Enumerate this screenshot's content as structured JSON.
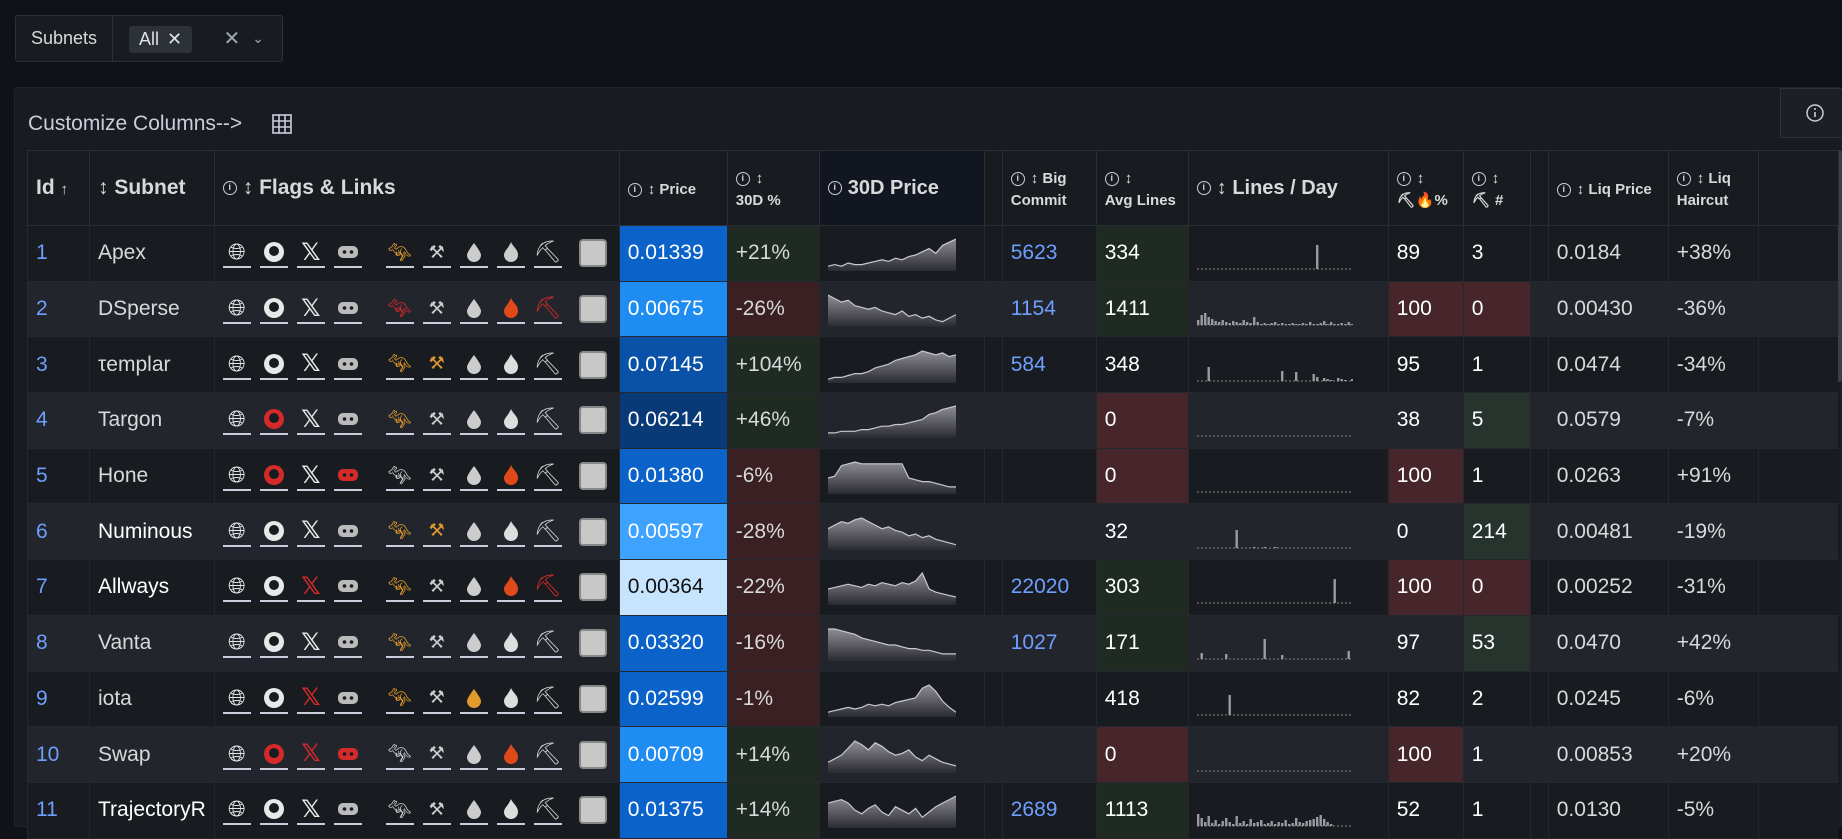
{
  "filter": {
    "label": "Subnets",
    "chip": "All"
  },
  "panel": {
    "customize": "Customize Columns-->"
  },
  "columns": {
    "id": "Id",
    "subnet": "Subnet",
    "flags": "Flags & Links",
    "price": "Price",
    "pct30": "30D %",
    "price30": "30D Price",
    "bigcommit": "Big Commit",
    "avglines": "Avg Lines",
    "linesday": "Lines / Day",
    "minerpct": "⛏🔥%",
    "minercount": "⛏ #",
    "liqprice": "Liq Price",
    "liqhaircut": "Liq Haircut"
  },
  "rows": [
    {
      "id": "1",
      "name": "Apex",
      "price": "0.01339",
      "pct": "+21%",
      "commit": "5623",
      "avg": "334",
      "mpct": "89",
      "mnum": "3",
      "liq": "0.0184",
      "hair": "+38%",
      "pc": "#0b63c9",
      "pcs": "pos",
      "ac": "pos",
      "mpc": "",
      "mnc": "",
      "spark": [
        3,
        4,
        3,
        5,
        4,
        4,
        5,
        6,
        7,
        6,
        8,
        7,
        9,
        10,
        12,
        14,
        11,
        16,
        18,
        20
      ],
      "bars": [
        0,
        0,
        0,
        0,
        0,
        0,
        0,
        0,
        0,
        0,
        0,
        0,
        0,
        0,
        0,
        0,
        0,
        0,
        0,
        0,
        0,
        0,
        0,
        0,
        0,
        0,
        0,
        0,
        0,
        0,
        0,
        0,
        0,
        0,
        24,
        0,
        0,
        0,
        0,
        0,
        0,
        0,
        0,
        0,
        0
      ],
      "g": "#c8c8c8",
      "gh": "#c8c8c8",
      "x": "#ccc",
      "d": "#ccc",
      "o1": "#e09a2d",
      "o2": "#ccc",
      "dr": "#ccc",
      "fl": "#ccc",
      "pk": "#ccc",
      "ghbg": ""
    },
    {
      "id": "2",
      "name": "DSperse",
      "price": "0.00675",
      "pct": "-26%",
      "commit": "1154",
      "avg": "1411",
      "mpct": "100",
      "mnum": "0",
      "liq": "0.00430",
      "hair": "-36%",
      "pc": "#1e8cf0",
      "pcs": "neg",
      "ac": "pos",
      "mpc": "red",
      "mnc": "red",
      "spark": [
        18,
        16,
        14,
        15,
        12,
        11,
        10,
        11,
        9,
        8,
        7,
        9,
        6,
        7,
        5,
        6,
        4,
        3,
        5,
        7
      ],
      "bars": [
        5,
        10,
        12,
        8,
        6,
        4,
        3,
        5,
        3,
        2,
        4,
        3,
        2,
        5,
        3,
        2,
        8,
        3,
        1,
        2,
        1,
        2,
        3,
        1,
        2,
        1,
        1,
        2,
        1,
        1,
        2,
        1,
        3,
        1,
        1,
        2,
        4,
        1,
        3,
        1,
        1,
        2,
        1,
        3,
        1
      ],
      "o1": "#d42a2a",
      "o2": "#ccc",
      "dr": "#ccc",
      "fl": "#e04a1a",
      "pk": "#d42a2a"
    },
    {
      "id": "3",
      "name": "τemplar",
      "price": "0.07145",
      "pct": "+104%",
      "commit": "584",
      "avg": "348",
      "mpct": "95",
      "mnum": "1",
      "liq": "0.0474",
      "hair": "-34%",
      "pc": "#0a52a8",
      "pcs": "pos",
      "ac": "",
      "mpc": "",
      "mnc": "",
      "spark": [
        2,
        3,
        3,
        4,
        5,
        5,
        6,
        8,
        9,
        10,
        12,
        13,
        14,
        15,
        17,
        16,
        15,
        16,
        14,
        15
      ],
      "bars": [
        0,
        0,
        0,
        14,
        0,
        0,
        0,
        0,
        0,
        0,
        0,
        0,
        0,
        0,
        0,
        0,
        0,
        0,
        0,
        0,
        0,
        0,
        0,
        0,
        10,
        0,
        0,
        0,
        9,
        0,
        0,
        0,
        0,
        7,
        4,
        0,
        3,
        2,
        1,
        0,
        3,
        2,
        1,
        0,
        2
      ],
      "o1": "#e09a2d",
      "o2": "#e09a2d"
    },
    {
      "id": "4",
      "name": "Targon",
      "price": "0.06214",
      "pct": "+46%",
      "commit": "",
      "avg": "0",
      "mpct": "38",
      "mnum": "5",
      "liq": "0.0579",
      "hair": "-7%",
      "pc": "#083a78",
      "pcs": "pos",
      "ac": "red",
      "mpc": "",
      "mnc": "green",
      "spark": [
        3,
        3,
        4,
        4,
        4,
        5,
        5,
        6,
        7,
        7,
        8,
        8,
        9,
        10,
        11,
        14,
        15,
        17,
        18,
        19
      ],
      "bars": [],
      "o1": "#e09a2d",
      "ghRed": true
    },
    {
      "id": "5",
      "name": "Hone",
      "price": "0.01380",
      "pct": "-6%",
      "commit": "",
      "avg": "0",
      "mpct": "100",
      "mnum": "1",
      "liq": "0.0263",
      "hair": "+91%",
      "pc": "#0b63c9",
      "pcs": "neg",
      "ac": "red",
      "mpc": "red",
      "mnc": "",
      "spark": [
        9,
        10,
        16,
        17,
        18,
        17,
        17,
        17,
        17,
        17,
        17,
        17,
        9,
        8,
        7,
        7,
        6,
        5,
        4,
        4
      ],
      "bars": [],
      "ghRed": true,
      "dRed": true,
      "fl": "#e04a1a"
    },
    {
      "id": "6",
      "name": "Numinous",
      "price": "0.00597",
      "pct": "-28%",
      "commit": "",
      "avg": "32",
      "mpct": "0",
      "mnum": "214",
      "liq": "0.00481",
      "hair": "-19%",
      "pc": "#3ea2ff",
      "pcs": "neg",
      "ac": "",
      "mpc": "",
      "mnc": "green",
      "spark": [
        12,
        14,
        16,
        15,
        17,
        18,
        16,
        14,
        12,
        13,
        11,
        10,
        8,
        9,
        7,
        8,
        6,
        5,
        4,
        3
      ],
      "bars": [
        0,
        0,
        0,
        0,
        0,
        0,
        0,
        0,
        0,
        0,
        0,
        18,
        0,
        0,
        0,
        0,
        1,
        0,
        0,
        1,
        0,
        0,
        1,
        0,
        0,
        0,
        0,
        0,
        0,
        0,
        0,
        0,
        0,
        0,
        0,
        0,
        0,
        0,
        0,
        0,
        0,
        0,
        0,
        0,
        0
      ],
      "o1": "#e09a2d",
      "o2": "#e09a2d",
      "dark": true
    },
    {
      "id": "7",
      "name": "Allways",
      "price": "0.00364",
      "pct": "-22%",
      "commit": "22020",
      "avg": "303",
      "mpct": "100",
      "mnum": "0",
      "liq": "0.00252",
      "hair": "-31%",
      "pc": "#c7e4ff",
      "pcs": "neg",
      "ac": "pos",
      "mpc": "red",
      "mnc": "red",
      "spark": [
        10,
        11,
        12,
        13,
        12,
        11,
        13,
        12,
        14,
        13,
        12,
        14,
        13,
        15,
        20,
        10,
        8,
        7,
        6,
        5
      ],
      "bars": [
        0,
        0,
        0,
        0,
        0,
        0,
        0,
        0,
        0,
        0,
        0,
        0,
        0,
        0,
        0,
        0,
        0,
        0,
        0,
        0,
        0,
        0,
        0,
        0,
        0,
        0,
        0,
        0,
        0,
        0,
        0,
        0,
        0,
        0,
        0,
        0,
        0,
        0,
        0,
        24,
        0,
        0,
        0,
        0,
        0
      ],
      "xRed": true,
      "o1": "#e09a2d",
      "fl": "#e04a1a",
      "pk": "#d42a2a",
      "dark": true
    },
    {
      "id": "8",
      "name": "Vanta",
      "price": "0.03320",
      "pct": "-16%",
      "commit": "1027",
      "avg": "171",
      "mpct": "97",
      "mnum": "53",
      "liq": "0.0470",
      "hair": "+42%",
      "pc": "#0b63c9",
      "pcs": "neg",
      "ac": "pos",
      "mpc": "",
      "mnc": "green",
      "spark": [
        18,
        18,
        17,
        16,
        15,
        13,
        12,
        11,
        10,
        9,
        9,
        8,
        7,
        7,
        6,
        6,
        5,
        4,
        4,
        4
      ],
      "bars": [
        0,
        6,
        0,
        0,
        0,
        0,
        0,
        0,
        5,
        0,
        0,
        0,
        0,
        0,
        0,
        0,
        0,
        0,
        0,
        20,
        0,
        0,
        0,
        0,
        4,
        0,
        0,
        0,
        0,
        0,
        0,
        0,
        0,
        0,
        0,
        0,
        0,
        0,
        0,
        0,
        0,
        0,
        0,
        8,
        0
      ],
      "o1": "#e09a2d"
    },
    {
      "id": "9",
      "name": "iota",
      "price": "0.02599",
      "pct": "-1%",
      "commit": "",
      "avg": "418",
      "mpct": "82",
      "mnum": "2",
      "liq": "0.0245",
      "hair": "-6%",
      "pc": "#0b63c9",
      "pcs": "neg",
      "ac": "",
      "mpc": "",
      "mnc": "",
      "spark": [
        3,
        4,
        5,
        6,
        5,
        6,
        8,
        7,
        8,
        7,
        9,
        10,
        11,
        12,
        18,
        20,
        16,
        10,
        6,
        3
      ],
      "bars": [
        0,
        0,
        0,
        0,
        0,
        0,
        0,
        0,
        0,
        20,
        0,
        0,
        0,
        0,
        0,
        0,
        0,
        0,
        0,
        0,
        0,
        0,
        0,
        0,
        0,
        0,
        0,
        0,
        0,
        0,
        0,
        0,
        0,
        0,
        0,
        0,
        0,
        0,
        0,
        0,
        0,
        0,
        0,
        0,
        0
      ],
      "xRed": true,
      "o1": "#e09a2d",
      "drOr": true
    },
    {
      "id": "10",
      "name": "Swap",
      "price": "0.00709",
      "pct": "+14%",
      "commit": "",
      "avg": "0",
      "mpct": "100",
      "mnum": "1",
      "liq": "0.00853",
      "hair": "+20%",
      "pc": "#1e8cf0",
      "pcs": "pos",
      "ac": "red",
      "mpc": "red",
      "mnc": "",
      "spark": [
        6,
        8,
        10,
        14,
        18,
        16,
        13,
        17,
        15,
        12,
        10,
        11,
        13,
        9,
        7,
        10,
        8,
        6,
        5,
        4
      ],
      "bars": [],
      "ghRed": true,
      "xRed": true,
      "dRed": true,
      "fl": "#e04a1a"
    },
    {
      "id": "11",
      "name": "TrajectoryR",
      "price": "0.01375",
      "pct": "+14%",
      "commit": "2689",
      "avg": "1113",
      "mpct": "52",
      "mnum": "1",
      "liq": "0.0130",
      "hair": "-5%",
      "pc": "#0b63c9",
      "pcs": "pos",
      "ac": "pos",
      "mpc": "",
      "mnc": "",
      "spark": [
        14,
        15,
        16,
        14,
        10,
        8,
        11,
        13,
        9,
        7,
        12,
        10,
        8,
        11,
        6,
        9,
        12,
        14,
        16,
        18
      ],
      "bars": [
        12,
        8,
        4,
        10,
        3,
        6,
        2,
        5,
        8,
        4,
        2,
        10,
        3,
        5,
        2,
        7,
        3,
        4,
        6,
        2,
        3,
        5,
        2,
        4,
        3,
        6,
        2,
        3,
        8,
        4,
        3,
        5,
        6,
        7,
        9,
        11,
        7,
        4,
        2
      ],
      "dark": true
    }
  ]
}
